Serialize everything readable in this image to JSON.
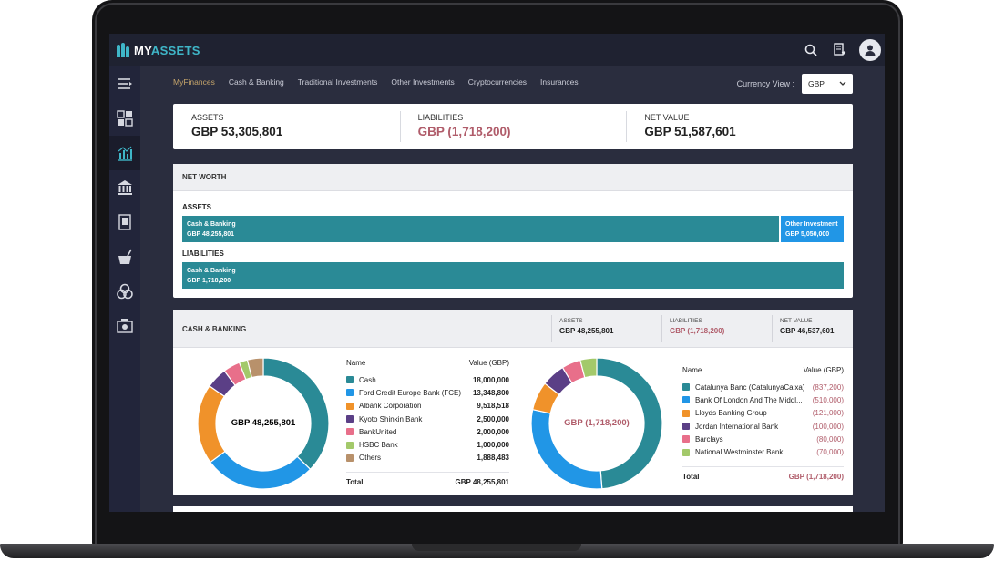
{
  "app": {
    "brand_prefix": "MY",
    "brand_suffix": "ASSETS"
  },
  "nav": {
    "tabs": [
      "MyFinances",
      "Cash & Banking",
      "Traditional Investments",
      "Other Investments",
      "Cryptocurrencies",
      "Insurances"
    ],
    "active_tab": "MyFinances",
    "currency_label": "Currency View :",
    "currency_value": "GBP"
  },
  "summary": {
    "assets_label": "ASSETS",
    "assets_value": "GBP 53,305,801",
    "liabilities_label": "LIABILITIES",
    "liabilities_value": "GBP (1,718,200)",
    "net_label": "NET VALUE",
    "net_value": "GBP 51,587,601"
  },
  "net_worth": {
    "title": "NET WORTH",
    "assets_label": "ASSETS",
    "liabilities_label": "LIABILITIES",
    "asset_bars": [
      {
        "name": "Cash & Banking",
        "value": "GBP 48,255,801",
        "share": 0.905,
        "color": "#2a8a96"
      },
      {
        "name": "Other Investment",
        "value": "GBP 5,050,000",
        "share": 0.095,
        "color": "#2196e6"
      }
    ],
    "liability_bars": [
      {
        "name": "Cash & Banking",
        "value": "GBP 1,718,200",
        "share": 1.0,
        "color": "#2a8a96"
      }
    ]
  },
  "cash_banking": {
    "title": "CASH & BANKING",
    "assets_label": "ASSETS",
    "assets_value": "GBP 48,255,801",
    "liabilities_label": "LIABILITIES",
    "liabilities_value": "GBP (1,718,200)",
    "net_label": "NET VALUE",
    "net_value": "GBP 46,537,601",
    "assets_chart": {
      "center_label": "GBP 48,255,801",
      "name_header": "Name",
      "value_header": "Value (GBP)",
      "rows": [
        {
          "name": "Cash",
          "value": "18,000,000",
          "amount": 18000000,
          "color": "#2a8a96"
        },
        {
          "name": "Ford Credit Europe Bank (FCE)",
          "value": "13,348,800",
          "amount": 13348800,
          "color": "#2196e6"
        },
        {
          "name": "Albank Corporation",
          "value": "9,518,518",
          "amount": 9518518,
          "color": "#f0922a"
        },
        {
          "name": "Kyoto Shinkin Bank",
          "value": "2,500,000",
          "amount": 2500000,
          "color": "#5b3f86"
        },
        {
          "name": "BankUnited",
          "value": "2,000,000",
          "amount": 2000000,
          "color": "#e86f8a"
        },
        {
          "name": "HSBC Bank",
          "value": "1,000,000",
          "amount": 1000000,
          "color": "#a3c96a"
        },
        {
          "name": "Others",
          "value": "1,888,483",
          "amount": 1888483,
          "color": "#b8916b"
        }
      ],
      "total_label": "Total",
      "total_value": "GBP 48,255,801"
    },
    "liabilities_chart": {
      "center_label": "GBP (1,718,200)",
      "name_header": "Name",
      "value_header": "Value (GBP)",
      "rows": [
        {
          "name": "Catalunya Banc (CatalunyaCaixa)",
          "value": "(837,200)",
          "amount": 837200,
          "color": "#2a8a96"
        },
        {
          "name": "Bank Of London And The Middl...",
          "value": "(510,000)",
          "amount": 510000,
          "color": "#2196e6"
        },
        {
          "name": "Lloyds Banking Group",
          "value": "(121,000)",
          "amount": 121000,
          "color": "#f0922a"
        },
        {
          "name": "Jordan International Bank",
          "value": "(100,000)",
          "amount": 100000,
          "color": "#5b3f86"
        },
        {
          "name": "Barclays",
          "value": "(80,000)",
          "amount": 80000,
          "color": "#e86f8a"
        },
        {
          "name": "National Westminster Bank",
          "value": "(70,000)",
          "amount": 70000,
          "color": "#a3c96a"
        }
      ],
      "total_label": "Total",
      "total_value": "GBP (1,718,200)"
    }
  }
}
